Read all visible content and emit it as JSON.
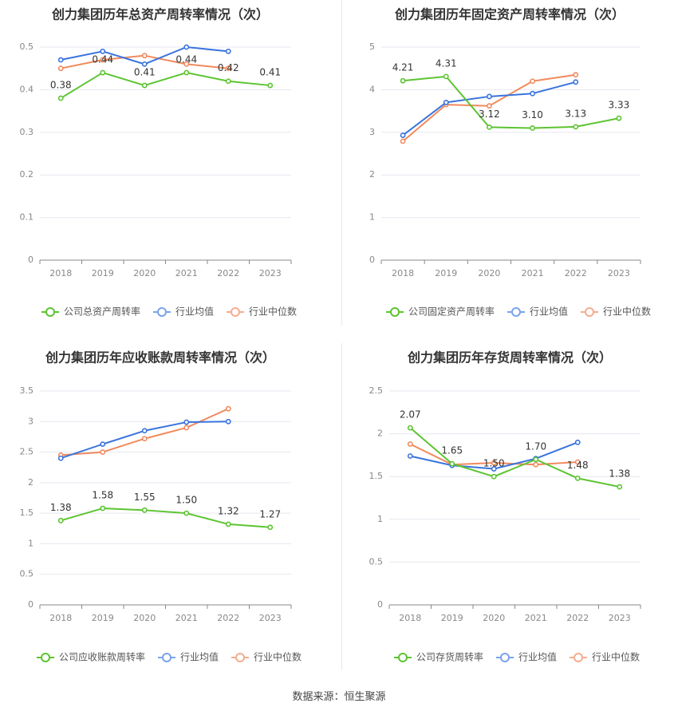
{
  "source_label": "数据来源：恒生聚源",
  "colors": {
    "company": "#5cc431",
    "avg": "#3a74dd",
    "median": "#f08a5d"
  },
  "chart_data": [
    {
      "type": "line",
      "title": "创力集团历年总资产周转率情况（次）",
      "categories": [
        "2018",
        "2019",
        "2020",
        "2021",
        "2022",
        "2023"
      ],
      "ylim": [
        0,
        0.5
      ],
      "yticks": [
        "0",
        "0.1",
        "0.2",
        "0.3",
        "0.4",
        "0.5"
      ],
      "ytick_values": [
        0,
        0.1,
        0.2,
        0.3,
        0.4,
        0.5
      ],
      "grid": true,
      "legend": "bottom",
      "series": [
        {
          "name": "公司总资产周转率",
          "key": "company",
          "values": [
            0.38,
            0.44,
            0.41,
            0.44,
            0.42,
            0.41
          ],
          "labels": [
            "0.38",
            "0.44",
            "0.41",
            "0.44",
            "0.42",
            "0.41"
          ]
        },
        {
          "name": "行业均值",
          "key": "avg",
          "values": [
            0.47,
            0.49,
            0.46,
            0.5,
            0.49,
            null
          ]
        },
        {
          "name": "行业中位数",
          "key": "median",
          "values": [
            0.45,
            0.47,
            0.48,
            0.46,
            0.45,
            null
          ]
        }
      ]
    },
    {
      "type": "line",
      "title": "创力集团历年固定资产周转率情况（次）",
      "categories": [
        "2018",
        "2019",
        "2020",
        "2021",
        "2022",
        "2023"
      ],
      "ylim": [
        0,
        5
      ],
      "yticks": [
        "0",
        "1",
        "2",
        "3",
        "4",
        "5"
      ],
      "ytick_values": [
        0,
        1,
        2,
        3,
        4,
        5
      ],
      "grid": true,
      "legend": "bottom",
      "series": [
        {
          "name": "公司固定资产周转率",
          "key": "company",
          "values": [
            4.21,
            4.31,
            3.12,
            3.1,
            3.13,
            3.33
          ],
          "labels": [
            "4.21",
            "4.31",
            "3.12",
            "3.10",
            "3.13",
            "3.33"
          ]
        },
        {
          "name": "行业均值",
          "key": "avg",
          "values": [
            2.93,
            3.7,
            3.84,
            3.91,
            4.18,
            null
          ]
        },
        {
          "name": "行业中位数",
          "key": "median",
          "values": [
            2.79,
            3.65,
            3.62,
            4.2,
            4.35,
            null
          ]
        }
      ]
    },
    {
      "type": "line",
      "title": "创力集团历年应收账款周转率情况（次）",
      "categories": [
        "2018",
        "2019",
        "2020",
        "2021",
        "2022",
        "2023"
      ],
      "ylim": [
        0,
        3.5
      ],
      "yticks": [
        "0",
        "0.5",
        "1",
        "1.5",
        "2",
        "2.5",
        "3",
        "3.5"
      ],
      "ytick_values": [
        0,
        0.5,
        1,
        1.5,
        2,
        2.5,
        3,
        3.5
      ],
      "grid": true,
      "legend": "bottom",
      "series": [
        {
          "name": "公司应收账款周转率",
          "key": "company",
          "values": [
            1.38,
            1.58,
            1.55,
            1.5,
            1.32,
            1.27
          ],
          "labels": [
            "1.38",
            "1.58",
            "1.55",
            "1.50",
            "1.32",
            "1.27"
          ]
        },
        {
          "name": "行业均值",
          "key": "avg",
          "values": [
            2.4,
            2.63,
            2.85,
            2.99,
            3.0,
            null
          ]
        },
        {
          "name": "行业中位数",
          "key": "median",
          "values": [
            2.45,
            2.5,
            2.72,
            2.9,
            3.21,
            null
          ]
        }
      ]
    },
    {
      "type": "line",
      "title": "创力集团历年存货周转率情况（次）",
      "categories": [
        "2018",
        "2019",
        "2020",
        "2021",
        "2022",
        "2023"
      ],
      "ylim": [
        0,
        2.5
      ],
      "yticks": [
        "0",
        "0.5",
        "1",
        "1.5",
        "2",
        "2.5"
      ],
      "ytick_values": [
        0,
        0.5,
        1,
        1.5,
        2,
        2.5
      ],
      "grid": true,
      "legend": "bottom",
      "series": [
        {
          "name": "公司存货周转率",
          "key": "company",
          "values": [
            2.07,
            1.65,
            1.5,
            1.7,
            1.48,
            1.38
          ],
          "labels": [
            "2.07",
            "1.65",
            "1.50",
            "1.70",
            "1.48",
            "1.38"
          ]
        },
        {
          "name": "行业均值",
          "key": "avg",
          "values": [
            1.74,
            1.63,
            1.59,
            1.71,
            1.9,
            null
          ]
        },
        {
          "name": "行业中位数",
          "key": "median",
          "values": [
            1.88,
            1.64,
            1.66,
            1.64,
            1.67,
            null
          ]
        }
      ]
    }
  ]
}
